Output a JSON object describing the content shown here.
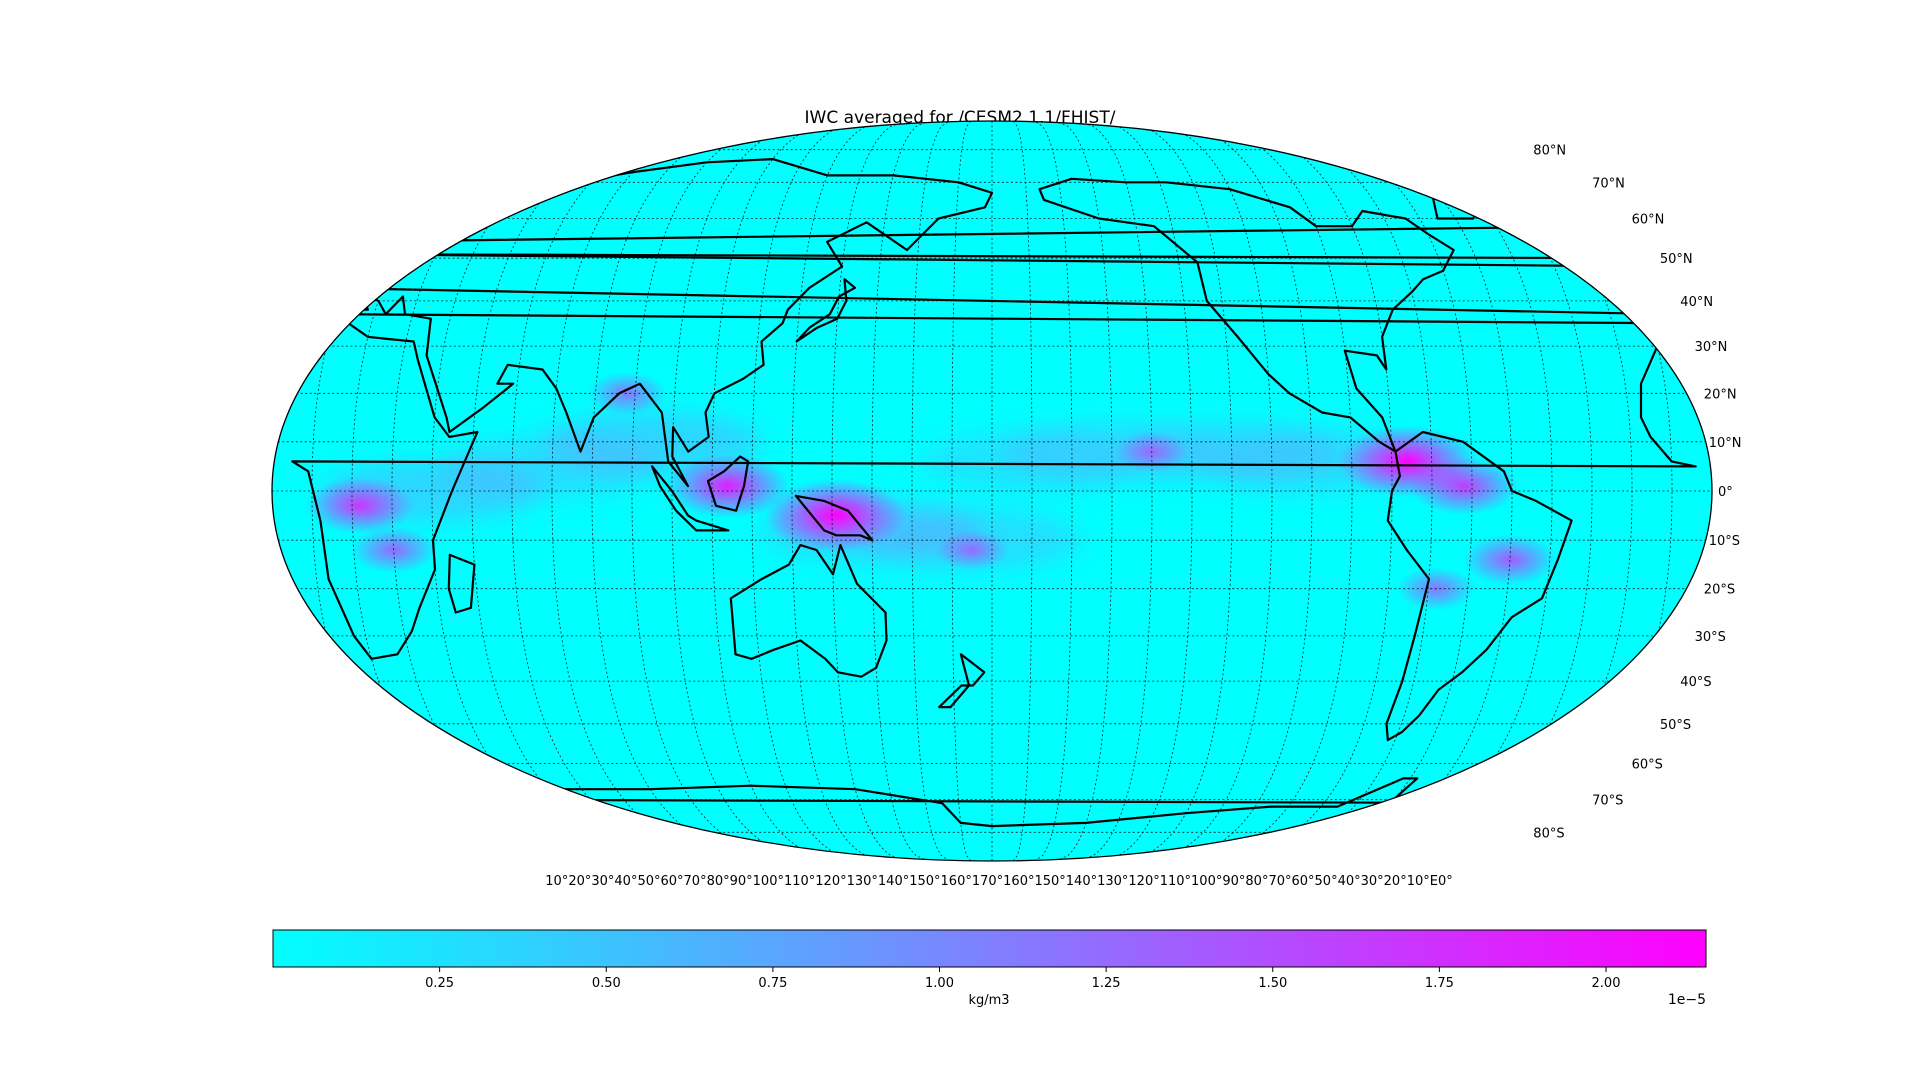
{
  "figure": {
    "title": "IWC averaged for /CESM2.1.1/FHIST/"
  },
  "map": {
    "projection": "Robinson",
    "central_longitude": 180,
    "graticule_step_deg": 10,
    "graticule_style": "dotted",
    "colormap": "cool",
    "lat_labels": [
      "80°N",
      "70°N",
      "60°N",
      "50°N",
      "40°N",
      "30°N",
      "20°N",
      "10°N",
      "0°",
      "10°S",
      "20°S",
      "30°S",
      "40°S",
      "50°S",
      "60°S",
      "70°S",
      "80°S"
    ],
    "lon_labels_text": "10°20°30°40°50°60°70°80°90°100°110°120°130°140°150°160°170°160°150°140°130°120°110°100°90°80°70°60°50°40°30°20°10°E0°",
    "features": [
      {
        "name": "colombia-central-america",
        "lon": -76,
        "lat": 6,
        "value": 2.15
      },
      {
        "name": "amazon",
        "lon": -62,
        "lat": 1,
        "value": 1.4
      },
      {
        "name": "brazil-highlands",
        "lon": -50,
        "lat": -14,
        "value": 1.0
      },
      {
        "name": "new-guinea",
        "lon": 141,
        "lat": -5,
        "value": 2.2
      },
      {
        "name": "borneo",
        "lon": 114,
        "lat": 1,
        "value": 1.75
      },
      {
        "name": "central-africa",
        "lon": 22,
        "lat": -3,
        "value": 1.35
      },
      {
        "name": "east-africa",
        "lon": 30,
        "lat": -12,
        "value": 0.8
      },
      {
        "name": "bay-of-bengal",
        "lon": 88,
        "lat": 20,
        "value": 0.6
      },
      {
        "name": "itcz-pacific",
        "lon": -140,
        "lat": 8,
        "value": 0.45
      },
      {
        "name": "spcz",
        "lon": 175,
        "lat": -12,
        "value": 0.45
      },
      {
        "name": "andes",
        "lon": -68,
        "lat": -20,
        "value": 0.6
      }
    ]
  },
  "colorbar": {
    "label": "kg/m3",
    "exponent": "1e−5",
    "min": 0.0,
    "max": 2.15,
    "ticks": [
      0.25,
      0.5,
      0.75,
      1.0,
      1.25,
      1.5,
      1.75,
      2.0
    ],
    "tick_labels": [
      "0.25",
      "0.50",
      "0.75",
      "1.00",
      "1.25",
      "1.50",
      "1.75",
      "2.00"
    ],
    "color_low": "#00ffff",
    "color_high": "#ff00ff"
  }
}
